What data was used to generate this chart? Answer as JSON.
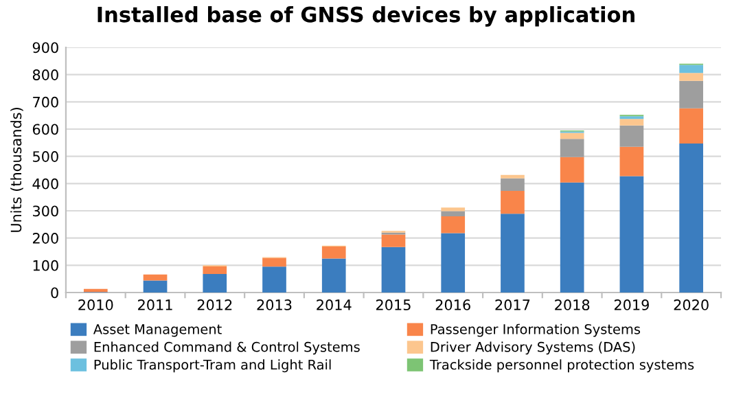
{
  "chart_data": {
    "type": "bar",
    "title": "Installed base of GNSS devices by application",
    "ylabel": "Units (thousands)",
    "categories": [
      "2010",
      "2011",
      "2012",
      "2013",
      "2014",
      "2015",
      "2016",
      "2017",
      "2018",
      "2019",
      "2020"
    ],
    "stacked": true,
    "series": [
      {
        "name": "Asset Management",
        "color": "#3b7dbf",
        "values": [
          2,
          44,
          68,
          95,
          125,
          167,
          218,
          289,
          404,
          427,
          547
        ]
      },
      {
        "name": "Passenger Information Systems",
        "color": "#f9854a",
        "values": [
          11,
          22,
          28,
          32,
          44,
          46,
          62,
          84,
          93,
          108,
          129
        ]
      },
      {
        "name": "Enhanced Command & Control Systems",
        "color": "#9e9e9e",
        "values": [
          null,
          null,
          null,
          null,
          null,
          7,
          19,
          46,
          67,
          78,
          101
        ]
      },
      {
        "name": "Driver Advisory Systems (DAS)",
        "color": "#fcc68e",
        "values": [
          null,
          null,
          4,
          3,
          3,
          6,
          13,
          13,
          22,
          24,
          29
        ]
      },
      {
        "name": "Public Transport-Tram and Light Rail",
        "color": "#6cc0df",
        "values": [
          null,
          null,
          null,
          null,
          null,
          null,
          null,
          null,
          5,
          10,
          30
        ]
      },
      {
        "name": "Trackside personnel protection systems",
        "color": "#7dc474",
        "values": [
          null,
          null,
          null,
          null,
          null,
          null,
          null,
          null,
          4,
          5,
          4
        ]
      }
    ],
    "ylim": [
      0,
      900
    ],
    "yticks": [
      0,
      100,
      200,
      300,
      400,
      500,
      600,
      700,
      800,
      900
    ],
    "grid": "y",
    "legend": "bottom"
  }
}
